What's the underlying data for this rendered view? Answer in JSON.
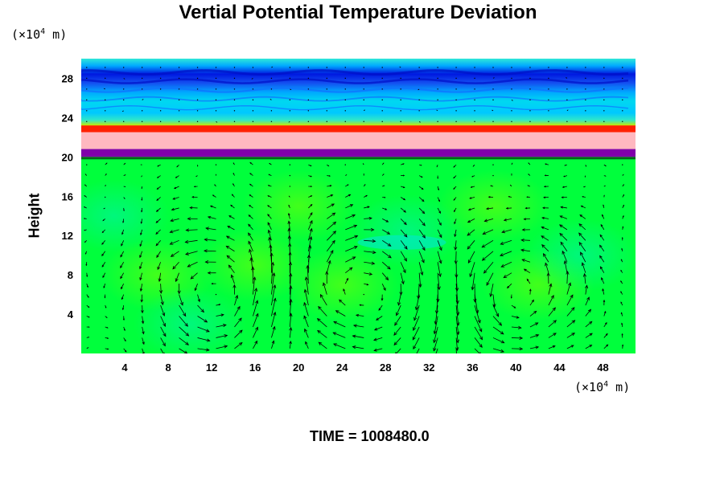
{
  "title": "Vertial Potential Temperature Deviation",
  "y_unit": {
    "prefix": "(×10",
    "exp": "4",
    "suffix": " m)"
  },
  "x_unit": {
    "prefix": "(×10",
    "exp": "4",
    "suffix": " m)"
  },
  "time_text": "TIME = 1008480.0",
  "colors": {
    "background_field": "#00ff3c",
    "inversion_band": "#ffb8c0",
    "purple_band": "#8000aa",
    "upper_cold": "#0018e0",
    "arrow": "#000000"
  },
  "chart_data": {
    "type": "heatmap",
    "title": "Vertial Potential Temperature Deviation",
    "xlabel": "",
    "ylabel": "Height",
    "xlim": [
      0,
      51
    ],
    "ylim": [
      0,
      30
    ],
    "x_ticks": [
      4,
      8,
      12,
      16,
      20,
      24,
      28,
      32,
      36,
      40,
      44,
      48
    ],
    "y_ticks": [
      4,
      8,
      12,
      16,
      20,
      24,
      28
    ],
    "overlay": "velocity vectors (arrows)",
    "bands": [
      {
        "from": 0,
        "to": 20,
        "color": "#00ff3c"
      },
      {
        "from": 20,
        "to": 20.8,
        "color": "#8000aa"
      },
      {
        "from": 20.8,
        "to": 22.6,
        "color": "#ffb8c0"
      },
      {
        "from": 22.6,
        "to": 23.2,
        "color": "#ff2000"
      },
      {
        "from": 23.2,
        "to": 30,
        "color": "#0018e0"
      }
    ],
    "cells": [
      {
        "center_x": 12.5,
        "direction": "ccw"
      },
      {
        "center_x": 26,
        "direction": "cw"
      },
      {
        "center_x": 40,
        "direction": "ccw"
      }
    ],
    "time": "1008480.0"
  }
}
